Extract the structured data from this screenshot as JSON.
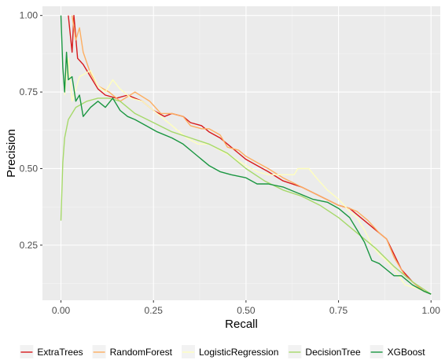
{
  "chart_data": {
    "type": "line",
    "title": "",
    "xlabel": "Recall",
    "ylabel": "Precision",
    "xlim": [
      -0.05,
      1.025
    ],
    "ylim": [
      0.07,
      1.03
    ],
    "x_ticks": [
      0.0,
      0.25,
      0.5,
      0.75,
      1.0
    ],
    "x_tick_labels": [
      "0.00",
      "0.25",
      "0.50",
      "0.75",
      "1.00"
    ],
    "y_ticks": [
      0.25,
      0.5,
      0.75,
      1.0
    ],
    "y_tick_labels": [
      "0.25",
      "0.50",
      "0.75",
      "1.00"
    ],
    "grid": true,
    "legend_position": "bottom",
    "background": "#ebebeb",
    "series": [
      {
        "name": "ExtraTrees",
        "color": "#d7191c",
        "points": [
          [
            0.02,
            1.0
          ],
          [
            0.03,
            0.88
          ],
          [
            0.035,
            1.0
          ],
          [
            0.045,
            0.86
          ],
          [
            0.06,
            0.84
          ],
          [
            0.08,
            0.8
          ],
          [
            0.1,
            0.76
          ],
          [
            0.12,
            0.74
          ],
          [
            0.15,
            0.73
          ],
          [
            0.18,
            0.74
          ],
          [
            0.22,
            0.72
          ],
          [
            0.25,
            0.69
          ],
          [
            0.28,
            0.67
          ],
          [
            0.3,
            0.68
          ],
          [
            0.33,
            0.67
          ],
          [
            0.35,
            0.65
          ],
          [
            0.38,
            0.64
          ],
          [
            0.4,
            0.62
          ],
          [
            0.43,
            0.6
          ],
          [
            0.45,
            0.58
          ],
          [
            0.48,
            0.55
          ],
          [
            0.5,
            0.53
          ],
          [
            0.53,
            0.51
          ],
          [
            0.56,
            0.49
          ],
          [
            0.6,
            0.46
          ],
          [
            0.65,
            0.44
          ],
          [
            0.7,
            0.41
          ],
          [
            0.75,
            0.38
          ],
          [
            0.78,
            0.37
          ],
          [
            0.8,
            0.35
          ],
          [
            0.83,
            0.32
          ],
          [
            0.86,
            0.29
          ],
          [
            0.88,
            0.27
          ],
          [
            0.9,
            0.22
          ],
          [
            0.92,
            0.17
          ],
          [
            0.95,
            0.13
          ],
          [
            0.98,
            0.1
          ],
          [
            1.0,
            0.09
          ]
        ]
      },
      {
        "name": "RandomForest",
        "color": "#fdae61",
        "points": [
          [
            0.03,
            1.0
          ],
          [
            0.04,
            0.92
          ],
          [
            0.05,
            0.96
          ],
          [
            0.06,
            0.88
          ],
          [
            0.08,
            0.81
          ],
          [
            0.1,
            0.77
          ],
          [
            0.13,
            0.75
          ],
          [
            0.16,
            0.72
          ],
          [
            0.2,
            0.75
          ],
          [
            0.24,
            0.72
          ],
          [
            0.27,
            0.68
          ],
          [
            0.3,
            0.68
          ],
          [
            0.33,
            0.67
          ],
          [
            0.35,
            0.64
          ],
          [
            0.38,
            0.63
          ],
          [
            0.4,
            0.63
          ],
          [
            0.43,
            0.61
          ],
          [
            0.45,
            0.57
          ],
          [
            0.48,
            0.56
          ],
          [
            0.5,
            0.54
          ],
          [
            0.53,
            0.52
          ],
          [
            0.56,
            0.5
          ],
          [
            0.6,
            0.47
          ],
          [
            0.65,
            0.44
          ],
          [
            0.7,
            0.41
          ],
          [
            0.75,
            0.38
          ],
          [
            0.78,
            0.37
          ],
          [
            0.8,
            0.36
          ],
          [
            0.83,
            0.33
          ],
          [
            0.86,
            0.29
          ],
          [
            0.88,
            0.27
          ],
          [
            0.9,
            0.21
          ],
          [
            0.93,
            0.15
          ],
          [
            0.96,
            0.12
          ],
          [
            0.98,
            0.1
          ],
          [
            1.0,
            0.09
          ]
        ]
      },
      {
        "name": "LogisticRegression",
        "color": "#ffffbf",
        "points": [
          [
            0.01,
            0.74
          ],
          [
            0.02,
            0.86
          ],
          [
            0.03,
            0.72
          ],
          [
            0.05,
            0.8
          ],
          [
            0.08,
            0.82
          ],
          [
            0.1,
            0.77
          ],
          [
            0.12,
            0.75
          ],
          [
            0.14,
            0.79
          ],
          [
            0.16,
            0.76
          ],
          [
            0.19,
            0.73
          ],
          [
            0.22,
            0.72
          ],
          [
            0.25,
            0.69
          ],
          [
            0.28,
            0.66
          ],
          [
            0.31,
            0.63
          ],
          [
            0.34,
            0.6
          ],
          [
            0.37,
            0.58
          ],
          [
            0.4,
            0.58
          ],
          [
            0.43,
            0.56
          ],
          [
            0.46,
            0.54
          ],
          [
            0.5,
            0.51
          ],
          [
            0.53,
            0.49
          ],
          [
            0.56,
            0.48
          ],
          [
            0.6,
            0.48
          ],
          [
            0.63,
            0.48
          ],
          [
            0.64,
            0.5
          ],
          [
            0.67,
            0.5
          ],
          [
            0.69,
            0.47
          ],
          [
            0.72,
            0.43
          ],
          [
            0.75,
            0.4
          ],
          [
            0.78,
            0.36
          ],
          [
            0.8,
            0.34
          ],
          [
            0.82,
            0.3
          ],
          [
            0.84,
            0.25
          ],
          [
            0.86,
            0.22
          ],
          [
            0.88,
            0.2
          ],
          [
            0.9,
            0.17
          ],
          [
            0.93,
            0.12
          ],
          [
            0.96,
            0.11
          ],
          [
            1.0,
            0.09
          ]
        ]
      },
      {
        "name": "DecisionTree",
        "color": "#a6d96a",
        "points": [
          [
            0.0,
            0.33
          ],
          [
            0.005,
            0.52
          ],
          [
            0.01,
            0.6
          ],
          [
            0.02,
            0.66
          ],
          [
            0.04,
            0.7
          ],
          [
            0.07,
            0.72
          ],
          [
            0.1,
            0.73
          ],
          [
            0.13,
            0.73
          ],
          [
            0.16,
            0.72
          ],
          [
            0.2,
            0.68
          ],
          [
            0.25,
            0.65
          ],
          [
            0.3,
            0.62
          ],
          [
            0.35,
            0.6
          ],
          [
            0.4,
            0.58
          ],
          [
            0.45,
            0.55
          ],
          [
            0.5,
            0.5
          ],
          [
            0.55,
            0.46
          ],
          [
            0.6,
            0.43
          ],
          [
            0.65,
            0.41
          ],
          [
            0.7,
            0.38
          ],
          [
            0.75,
            0.34
          ],
          [
            0.8,
            0.29
          ],
          [
            0.85,
            0.24
          ],
          [
            0.9,
            0.18
          ],
          [
            0.95,
            0.13
          ],
          [
            1.0,
            0.09
          ]
        ]
      },
      {
        "name": "XGBoost",
        "color": "#1a9641",
        "points": [
          [
            0.0,
            1.0
          ],
          [
            0.005,
            0.83
          ],
          [
            0.01,
            0.75
          ],
          [
            0.015,
            0.88
          ],
          [
            0.02,
            0.79
          ],
          [
            0.03,
            0.8
          ],
          [
            0.04,
            0.72
          ],
          [
            0.05,
            0.74
          ],
          [
            0.06,
            0.67
          ],
          [
            0.08,
            0.7
          ],
          [
            0.1,
            0.72
          ],
          [
            0.12,
            0.7
          ],
          [
            0.14,
            0.73
          ],
          [
            0.16,
            0.69
          ],
          [
            0.18,
            0.67
          ],
          [
            0.2,
            0.66
          ],
          [
            0.23,
            0.64
          ],
          [
            0.26,
            0.62
          ],
          [
            0.3,
            0.6
          ],
          [
            0.33,
            0.58
          ],
          [
            0.36,
            0.55
          ],
          [
            0.4,
            0.51
          ],
          [
            0.43,
            0.49
          ],
          [
            0.46,
            0.48
          ],
          [
            0.5,
            0.47
          ],
          [
            0.53,
            0.45
          ],
          [
            0.56,
            0.45
          ],
          [
            0.6,
            0.44
          ],
          [
            0.64,
            0.42
          ],
          [
            0.68,
            0.4
          ],
          [
            0.72,
            0.39
          ],
          [
            0.75,
            0.37
          ],
          [
            0.78,
            0.34
          ],
          [
            0.8,
            0.3
          ],
          [
            0.82,
            0.26
          ],
          [
            0.84,
            0.2
          ],
          [
            0.86,
            0.19
          ],
          [
            0.88,
            0.17
          ],
          [
            0.9,
            0.15
          ],
          [
            0.92,
            0.15
          ],
          [
            0.95,
            0.12
          ],
          [
            0.98,
            0.1
          ],
          [
            1.0,
            0.09
          ]
        ]
      }
    ]
  }
}
